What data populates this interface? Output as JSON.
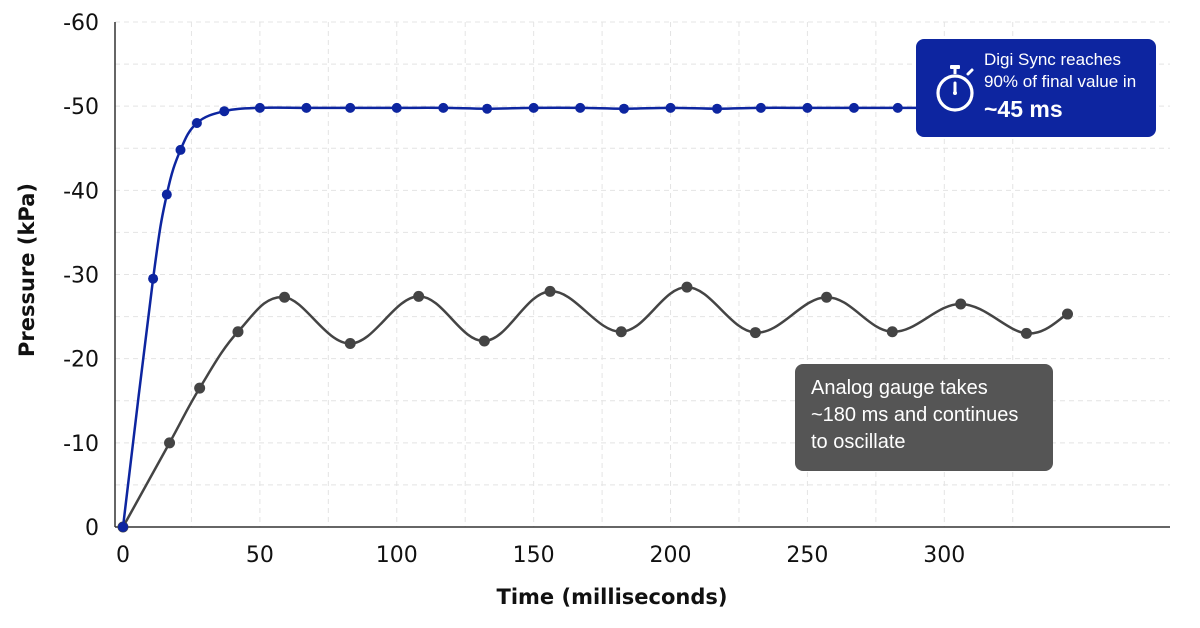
{
  "chart_data": {
    "type": "line",
    "xlabel": "Time (milliseconds)",
    "ylabel": "Pressure (kPa)",
    "xlim": [
      0,
      345
    ],
    "ylim": [
      0,
      -60
    ],
    "x_ticks": [
      0,
      50,
      100,
      150,
      200,
      250,
      300
    ],
    "x_tick_labels": [
      "0",
      "50",
      "100",
      "150",
      "200",
      "250",
      "300"
    ],
    "y_ticks": [
      0,
      -10,
      -20,
      -30,
      -40,
      -50,
      -60
    ],
    "y_tick_labels": [
      "0",
      "-10",
      "-20",
      "-30",
      "-40",
      "-50",
      "-60"
    ],
    "grid": true,
    "series": [
      {
        "color": "#0d25a0",
        "x": [
          0,
          11,
          16,
          21,
          27,
          37,
          50,
          67,
          83,
          100,
          117,
          133,
          150,
          167,
          183,
          200,
          217,
          233,
          250,
          267,
          283,
          300,
          317,
          333,
          345
        ],
        "y": [
          0,
          -29.5,
          -39.5,
          -44.8,
          -48,
          -49.4,
          -49.8,
          -49.8,
          -49.8,
          -49.8,
          -49.8,
          -49.7,
          -49.8,
          -49.8,
          -49.7,
          -49.8,
          -49.7,
          -49.8,
          -49.8,
          -49.8,
          -49.8,
          -49.8,
          -49.8,
          -49.8,
          -49.8
        ]
      },
      {
        "color": "#444444",
        "x": [
          0,
          17,
          28,
          42,
          59,
          83,
          108,
          132,
          156,
          182,
          206,
          231,
          257,
          281,
          306,
          330,
          345
        ],
        "y": [
          0,
          -10,
          -16.5,
          -23.2,
          -27.3,
          -21.8,
          -27.4,
          -22.1,
          -28,
          -23.2,
          -28.5,
          -23.1,
          -27.3,
          -23.2,
          -26.5,
          -23,
          -25.3
        ]
      }
    ]
  },
  "annotations": {
    "digi": {
      "line1": "Digi Sync reaches",
      "line2": "90% of final value in",
      "value": "~45 ms",
      "color": "#0d25a0",
      "icon": "stopwatch-icon"
    },
    "analog": {
      "line1": "Analog gauge takes",
      "line2": "~180 ms and continues",
      "line3": "to oscillate",
      "color": "#555555"
    }
  }
}
